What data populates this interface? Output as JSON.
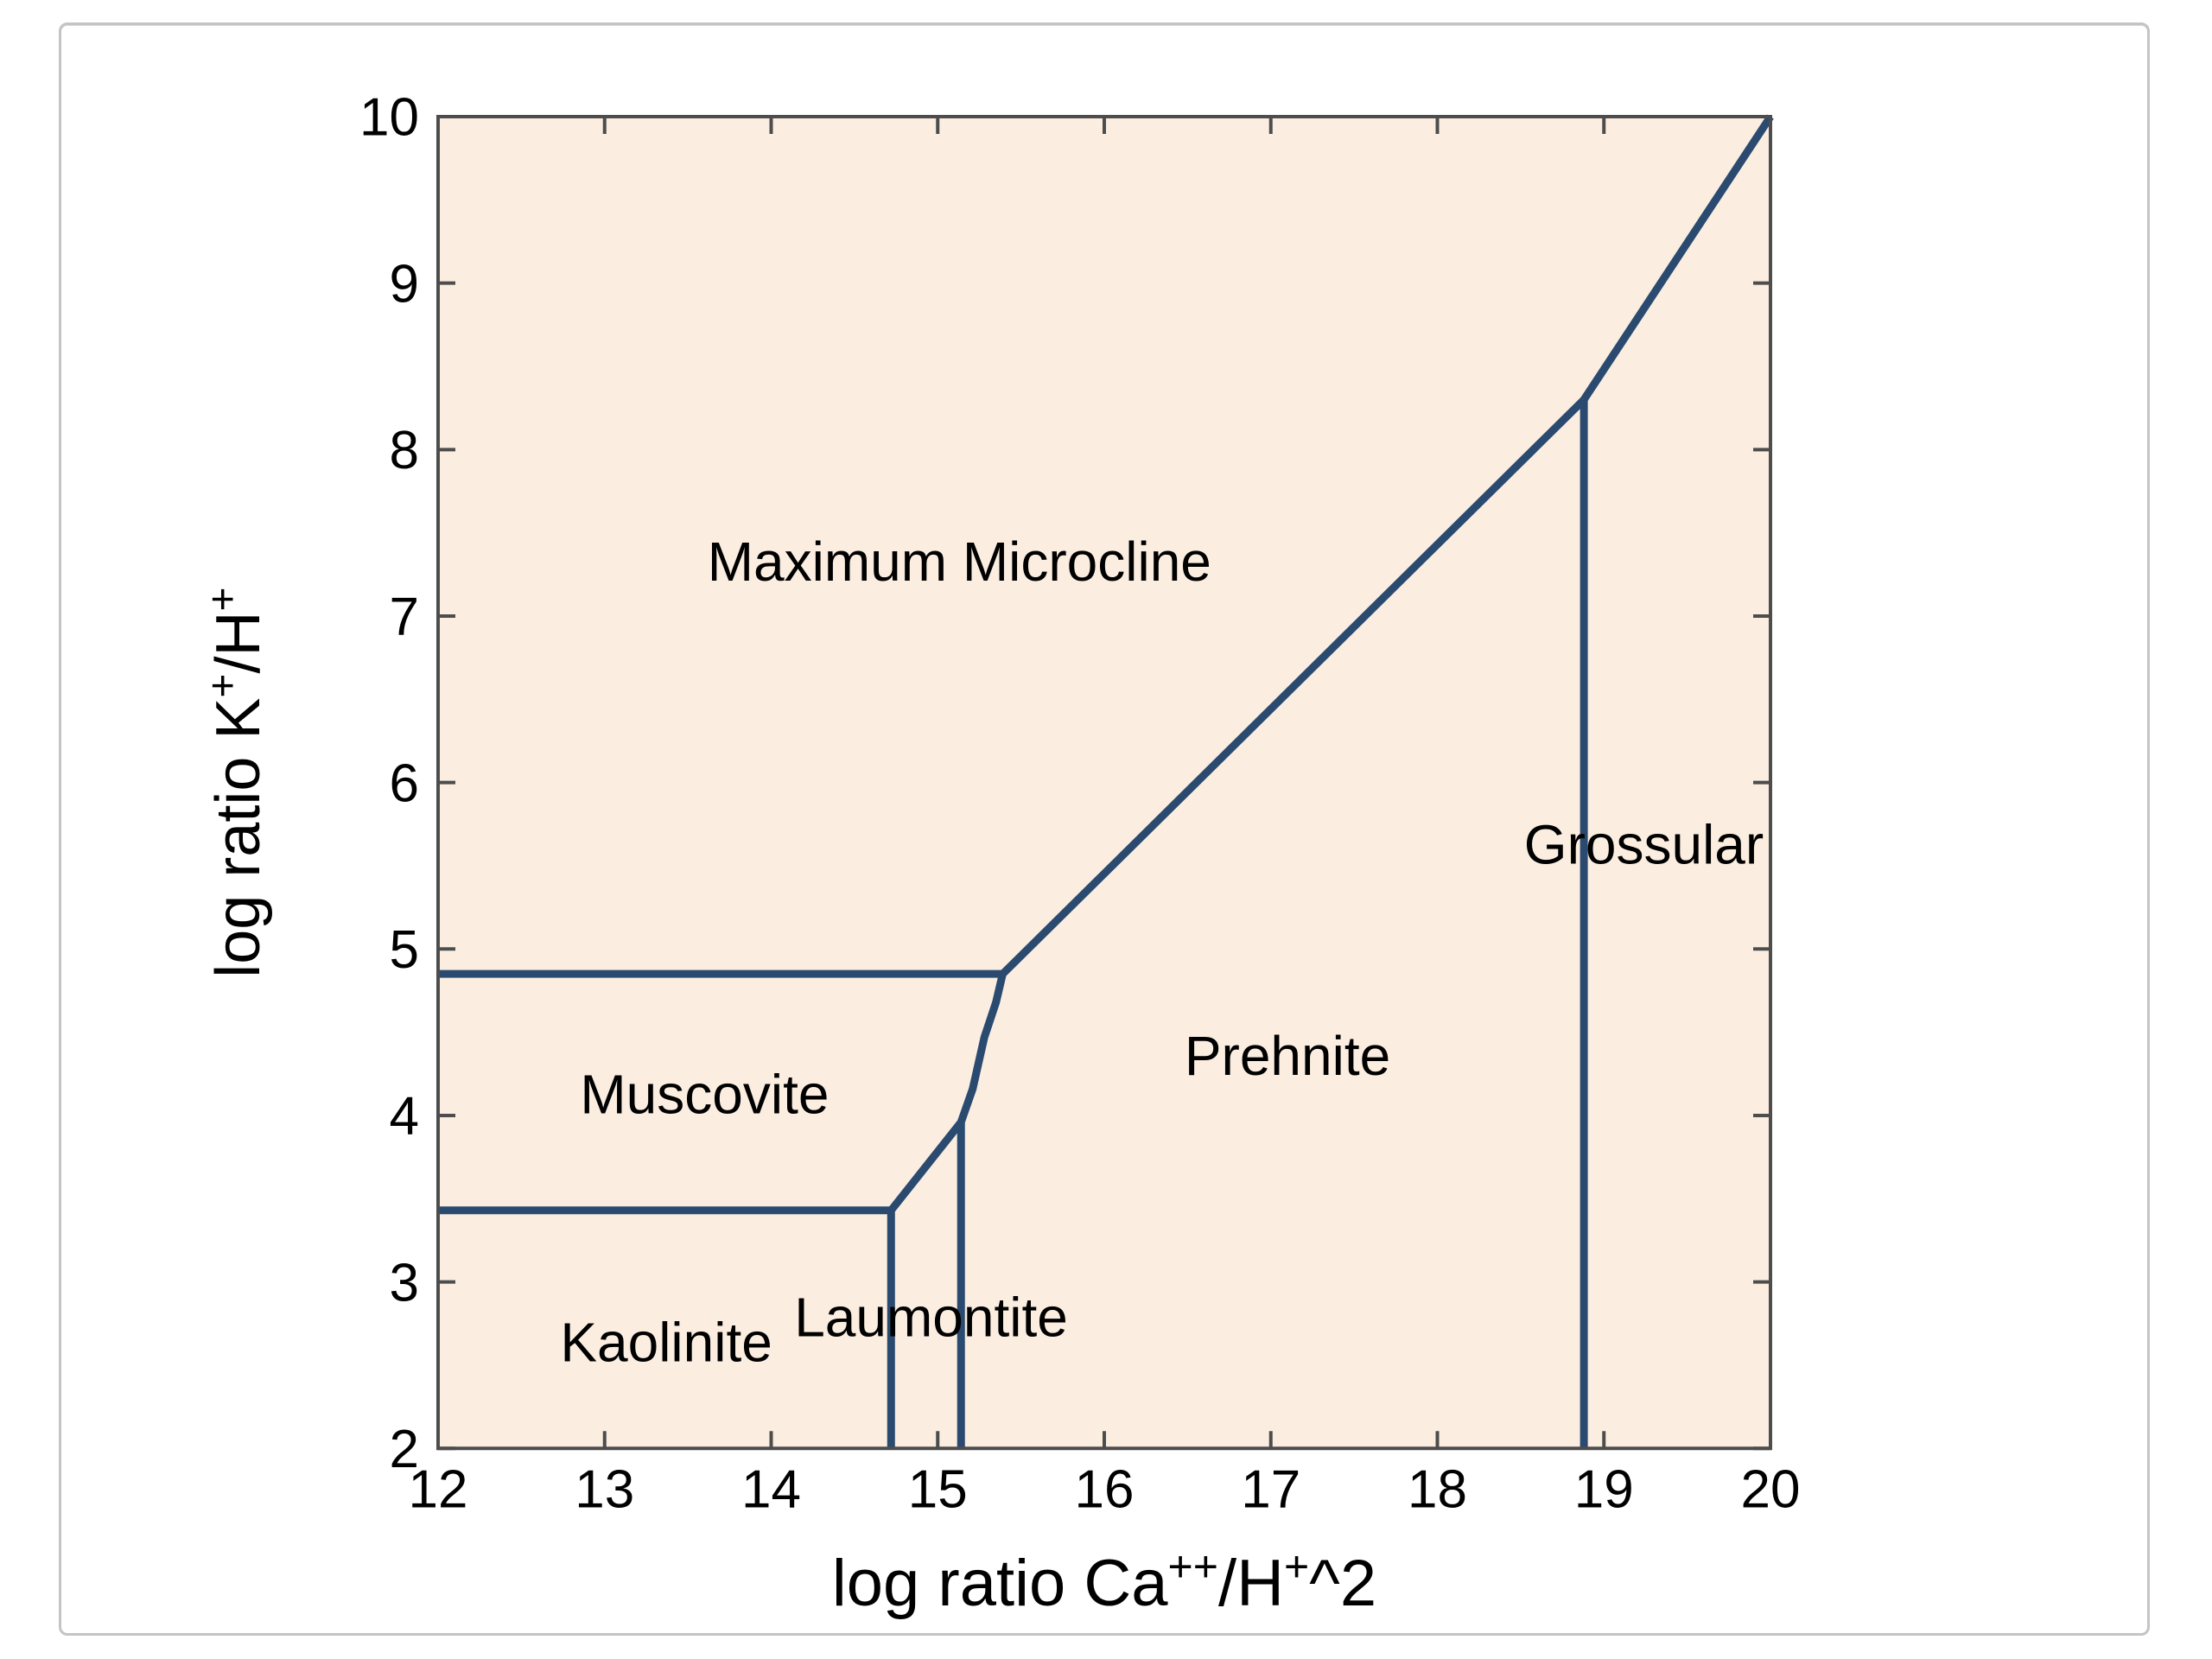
{
  "figure": {
    "background_color": "#ffffff",
    "frame_border_color": "#c4c4c4",
    "plot_background_color": "#fbeee1",
    "boundary_line_color": "#2b4a70",
    "axis_color": "#4d4d4d",
    "text_color": "#000000"
  },
  "chart_data": {
    "type": "line",
    "title": "",
    "xlabel": "log ratio Ca++/H+^2",
    "ylabel": "log ratio K+/H+",
    "xlabel_parts": [
      {
        "t": "log ratio Ca",
        "sup": false
      },
      {
        "t": "++",
        "sup": true
      },
      {
        "t": "/H",
        "sup": false
      },
      {
        "t": "+",
        "sup": true
      },
      {
        "t": "^2",
        "sup": false
      }
    ],
    "ylabel_parts": [
      {
        "t": "log ratio K",
        "sup": false
      },
      {
        "t": "+",
        "sup": true
      },
      {
        "t": "/H",
        "sup": false
      },
      {
        "t": "+",
        "sup": true
      }
    ],
    "xlim": [
      12,
      20
    ],
    "ylim": [
      2,
      10
    ],
    "x_ticks": [
      12,
      13,
      14,
      15,
      16,
      17,
      18,
      19,
      20
    ],
    "y_ticks": [
      2,
      3,
      4,
      5,
      6,
      7,
      8,
      9,
      10
    ],
    "grid": false,
    "legend": null,
    "regions": [
      {
        "label": "Maximum Microcline",
        "x": 15.13,
        "y": 7.33
      },
      {
        "label": "Muscovite",
        "x": 13.6,
        "y": 4.13
      },
      {
        "label": "Kaolinite",
        "x": 13.37,
        "y": 2.64
      },
      {
        "label": "Laumontite",
        "x": 14.96,
        "y": 2.79
      },
      {
        "label": "Prehnite",
        "x": 17.1,
        "y": 4.36
      },
      {
        "label": "Grossular",
        "x": 19.24,
        "y": 5.63
      }
    ],
    "boundaries": [
      {
        "name": "muscovite-microcline",
        "points": [
          [
            12,
            4.85
          ],
          [
            15.39,
            4.85
          ]
        ]
      },
      {
        "name": "kaolinite-muscovite",
        "points": [
          [
            12,
            3.43
          ],
          [
            14.72,
            3.43
          ]
        ]
      },
      {
        "name": "kaolinite-laumontite",
        "points": [
          [
            14.72,
            2
          ],
          [
            14.72,
            3.43
          ]
        ]
      },
      {
        "name": "laumontite-prehnite",
        "points": [
          [
            15.14,
            2
          ],
          [
            15.14,
            3.96
          ]
        ]
      },
      {
        "name": "prehnite-grossular",
        "points": [
          [
            18.88,
            2
          ],
          [
            18.88,
            8.3
          ]
        ]
      },
      {
        "name": "muscovite-laumontite-curve",
        "points": [
          [
            14.72,
            3.43
          ],
          [
            15.14,
            3.96
          ],
          [
            15.21,
            4.16
          ],
          [
            15.28,
            4.47
          ],
          [
            15.35,
            4.68
          ],
          [
            15.39,
            4.85
          ]
        ]
      },
      {
        "name": "microcline-prehnite",
        "points": [
          [
            15.39,
            4.85
          ],
          [
            18.88,
            8.3
          ]
        ]
      },
      {
        "name": "microcline-grossular",
        "points": [
          [
            18.88,
            8.3
          ],
          [
            20,
            10
          ]
        ]
      }
    ]
  }
}
